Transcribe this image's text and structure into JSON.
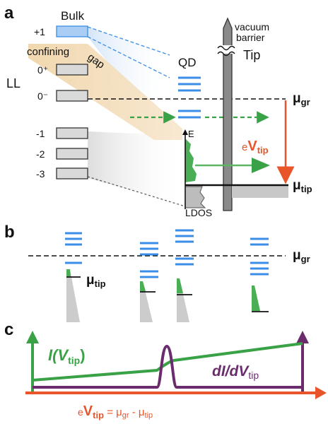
{
  "panels": {
    "a": "a",
    "b": "b",
    "c": "c"
  },
  "panel_a": {
    "bulk": "Bulk",
    "ll": "LL",
    "levels": [
      "+1",
      "0⁺",
      "0⁻",
      "-1",
      "-2",
      "-3"
    ],
    "confining": "confining",
    "gap": "gap",
    "qd": "QD",
    "vacuum": "vacuum",
    "barrier": "barrier",
    "tip": "Tip",
    "mu_gr": "μ",
    "mu_gr_sub": "gr",
    "mu_tip": "μ",
    "mu_tip_sub": "tip",
    "e": "e",
    "v": "V",
    "v_sub": "tip",
    "axis_e": "E",
    "ldos": "LDOS"
  },
  "panel_b": {
    "mu_gr": "μ",
    "mu_gr_sub": "gr",
    "mu_tip": "μ",
    "mu_tip_sub": "tip"
  },
  "panel_c": {
    "i_main": "I(V",
    "i_sub": "tip",
    "i_close": ")",
    "didv": "dI/dV",
    "didv_sub": "tip",
    "eq_e": "e",
    "eq_v": "V",
    "eq_vsub": "tip",
    "eq_rest": " = μ",
    "eq_gr": "gr",
    "eq_mid": " - μ",
    "eq_tip": "tip"
  },
  "colors": {
    "level_blue": "#3b8ee8",
    "green": "#3aa246",
    "orange": "#e8552a",
    "purple": "#6b2c6e",
    "gap_tan": "#f0d8b0",
    "gray_fill": "#c8c8c8"
  }
}
